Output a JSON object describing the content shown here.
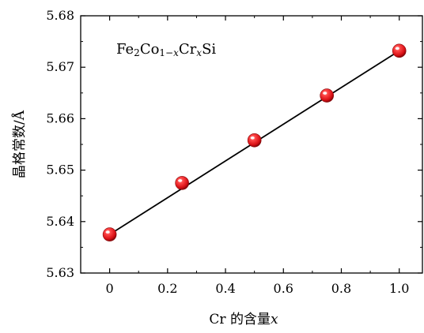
{
  "chart_data": {
    "type": "scatter",
    "title": "",
    "xlabel": "Cr 的含量x",
    "ylabel": "晶格常数/Å",
    "xlim": [
      -0.1,
      1.08
    ],
    "ylim": [
      5.63,
      5.68
    ],
    "x_ticks": [
      0,
      0.2,
      0.4,
      0.6,
      0.8,
      1.0
    ],
    "x_tick_labels": [
      "0",
      "0.2",
      "0.4",
      "0.6",
      "0.8",
      "1.0"
    ],
    "y_ticks": [
      5.63,
      5.64,
      5.65,
      5.66,
      5.67,
      5.68
    ],
    "y_tick_labels": [
      "5.63",
      "5.64",
      "5.65",
      "5.66",
      "5.67",
      "5.68"
    ],
    "annotation": "Fe2Co1−xCrxSi",
    "grid": false,
    "series": [
      {
        "type": "scatter",
        "x": [
          0,
          0.25,
          0.5,
          0.75,
          1.0
        ],
        "y": [
          5.6375,
          5.6475,
          5.6558,
          5.6645,
          5.6732
        ],
        "color": "#e8161c"
      },
      {
        "type": "line",
        "x": [
          0,
          1.0
        ],
        "y": [
          5.6375,
          5.6732
        ],
        "color": "#000000"
      }
    ]
  }
}
